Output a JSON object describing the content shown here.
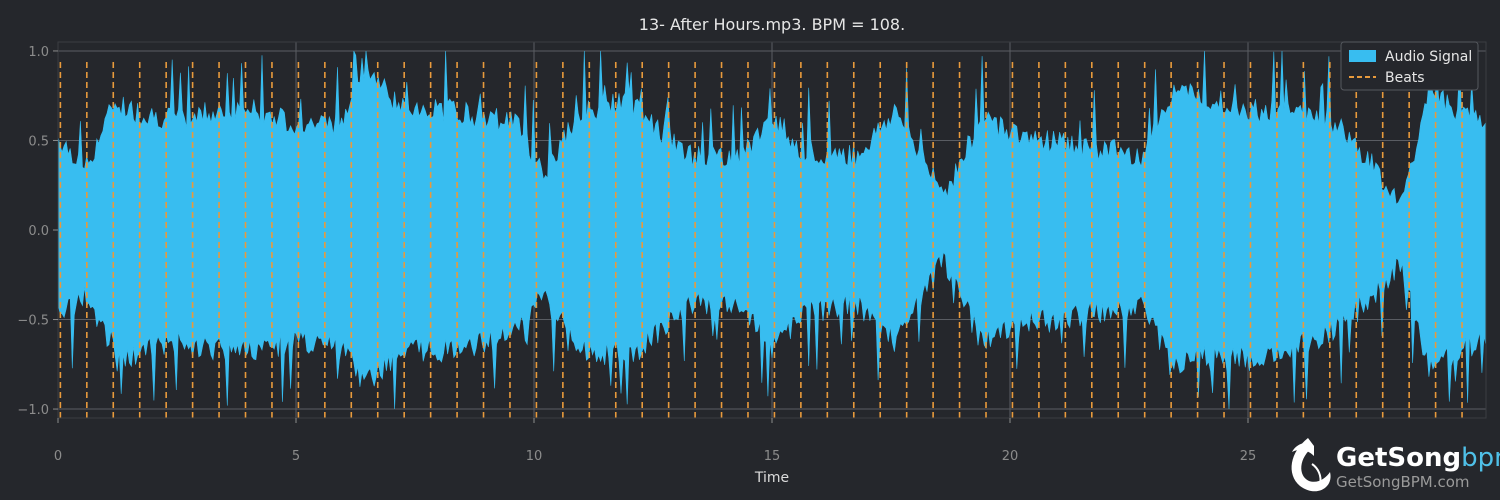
{
  "colors": {
    "background": "#25272c",
    "signal": "#38bdf0",
    "beats": "#e89a3c",
    "grid": "#5a5d63",
    "text": "#e6e6e6",
    "tick": "#8c8c8c"
  },
  "chart_data": {
    "type": "area",
    "title": "13- After Hours.mp3. BPM = 108.",
    "xlabel": "Time",
    "ylabel": "",
    "xlim": [
      0,
      30
    ],
    "ylim": [
      -1.05,
      1.05
    ],
    "x_ticks": [
      0,
      5,
      10,
      15,
      20,
      25
    ],
    "x_tick_labels": [
      "0",
      "5",
      "10",
      "15",
      "20",
      "25"
    ],
    "y_ticks": [
      1.0,
      0.5,
      0.0,
      -0.5,
      -1.0
    ],
    "y_tick_labels": [
      "1.0",
      "0.5",
      "0.0",
      "−0.5",
      "−1.0"
    ],
    "grid": true,
    "legend_position": "top-right",
    "series": [
      {
        "name": "Audio Signal",
        "kind": "envelope",
        "x": [
          0.0,
          0.6,
          1.2,
          1.5,
          2.4,
          3.3,
          4.2,
          5.0,
          6.0,
          6.4,
          7.2,
          8.4,
          9.0,
          9.6,
          10.2,
          11.0,
          12.0,
          13.2,
          14.4,
          15.0,
          15.6,
          16.8,
          17.6,
          18.6,
          19.4,
          20.4,
          21.6,
          22.8,
          23.4,
          24.0,
          25.2,
          26.4,
          27.0,
          27.6,
          28.2,
          28.8,
          29.4,
          30.0
        ],
        "upper": [
          0.45,
          0.28,
          0.65,
          0.6,
          0.55,
          0.6,
          0.6,
          0.53,
          0.53,
          0.85,
          0.62,
          0.6,
          0.55,
          0.55,
          0.25,
          0.6,
          0.65,
          0.35,
          0.35,
          0.58,
          0.38,
          0.35,
          0.6,
          0.12,
          0.55,
          0.45,
          0.4,
          0.35,
          0.7,
          0.68,
          0.6,
          0.6,
          0.5,
          0.3,
          0.05,
          0.7,
          0.6,
          0.55
        ],
        "lower": [
          -0.4,
          -0.3,
          -0.6,
          -0.65,
          -0.55,
          -0.6,
          -0.6,
          -0.55,
          -0.6,
          -0.8,
          -0.6,
          -0.6,
          -0.55,
          -0.5,
          -0.3,
          -0.6,
          -0.65,
          -0.35,
          -0.35,
          -0.6,
          -0.4,
          -0.35,
          -0.55,
          -0.1,
          -0.55,
          -0.45,
          -0.4,
          -0.35,
          -0.7,
          -0.65,
          -0.65,
          -0.55,
          -0.45,
          -0.3,
          -0.1,
          -0.7,
          -0.6,
          -0.55
        ]
      },
      {
        "name": "Beats",
        "kind": "vlines",
        "start": 0.05,
        "interval": 0.5556,
        "end": 29.95
      }
    ]
  },
  "brand": {
    "name_main": "GetSong",
    "name_accent": "bpm",
    "url": "GetSongBPM.com"
  }
}
